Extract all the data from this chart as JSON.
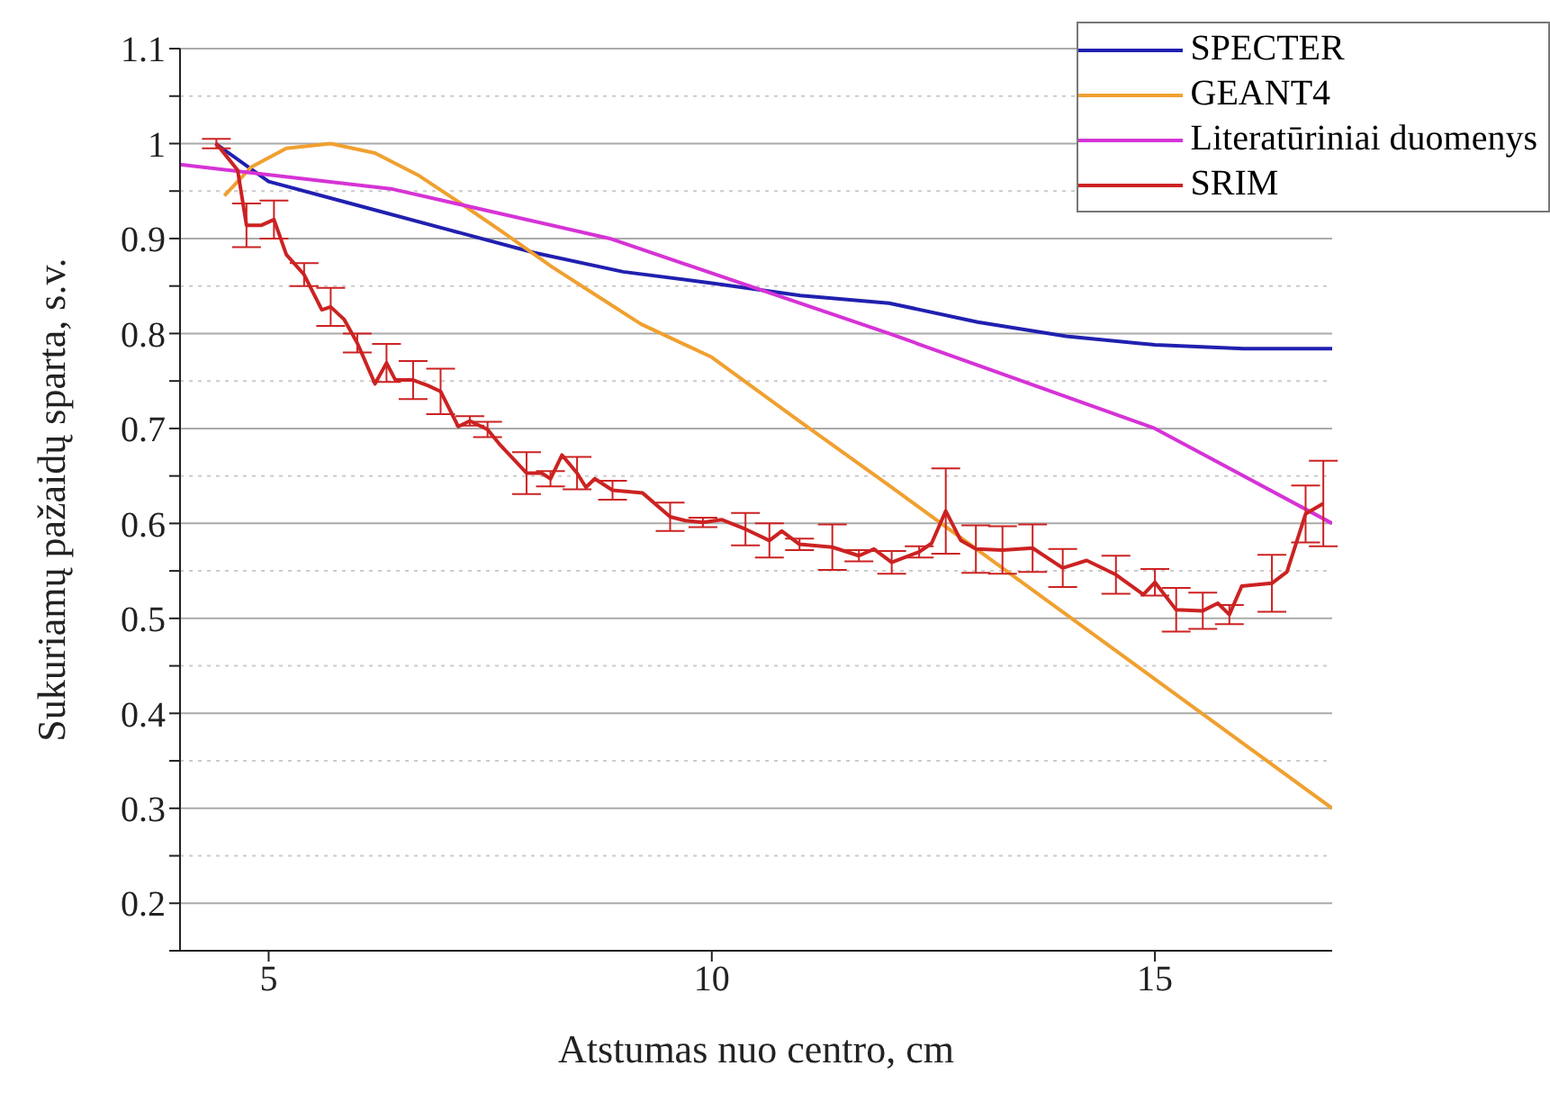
{
  "chart_data": {
    "type": "line",
    "xlabel": "Atstumas nuo centro, cm",
    "ylabel": "Sukuriamų pažaidų sparta, s.v.",
    "xlim": [
      4,
      17
    ],
    "xticks": [
      5,
      10,
      15
    ],
    "ylim": [
      0.15,
      1.1
    ],
    "yticks": [
      {
        "value": 0.15,
        "label": null
      },
      0.2,
      {
        "value": 0.25,
        "label": null
      },
      0.3,
      {
        "value": 0.35,
        "label": null
      },
      0.4,
      {
        "value": 0.45,
        "label": null
      },
      0.5,
      {
        "value": 0.55,
        "label": null
      },
      0.6,
      {
        "value": 0.65,
        "label": null
      },
      0.7,
      {
        "value": 0.75,
        "label": null
      },
      0.8,
      {
        "value": 0.85,
        "label": null
      },
      0.9,
      {
        "value": 0.95,
        "label": null
      },
      1.0,
      {
        "value": 1.05,
        "label": null
      },
      1.1
    ],
    "grid": "y",
    "legend": "top right",
    "series": [
      {
        "name": "SPECTER",
        "color": "#2020b0",
        "x": [
          4.4,
          5,
          6,
          7,
          8,
          9,
          10,
          11,
          12,
          13,
          14,
          15,
          16,
          17
        ],
        "values": [
          1.0,
          0.96,
          0.935,
          0.91,
          0.885,
          0.865,
          0.853,
          0.84,
          0.832,
          0.812,
          0.797,
          0.788,
          0.784,
          0.784
        ]
      },
      {
        "name": "GEANT4",
        "color": "#f0a030",
        "x": [
          4.5,
          4.8,
          5.2,
          5.7,
          6.2,
          6.7,
          7.2,
          7.7,
          8.2,
          8.7,
          9.2,
          10,
          11,
          12,
          13,
          14,
          15,
          16,
          17
        ],
        "values": [
          0.945,
          0.975,
          0.995,
          1.0,
          0.99,
          0.966,
          0.935,
          0.903,
          0.87,
          0.84,
          0.81,
          0.775,
          0.707,
          0.64,
          0.572,
          0.504,
          0.436,
          0.368,
          0.3
        ]
      },
      {
        "name": "Literatūriniai duomenys",
        "color": "#d633d6",
        "x": [
          4,
          6.4,
          8.85,
          12,
          15,
          17
        ],
        "values": [
          0.978,
          0.952,
          0.9,
          0.8,
          0.7,
          0.6
        ]
      },
      {
        "name": "SRIM",
        "color": "#cc2222",
        "x": [
          4.41,
          4.65,
          4.75,
          4.92,
          5.06,
          5.2,
          5.4,
          5.6,
          5.7,
          5.85,
          6.0,
          6.2,
          6.33,
          6.43,
          6.63,
          6.8,
          6.94,
          7.14,
          7.27,
          7.47,
          7.6,
          7.91,
          8.08,
          8.18,
          8.31,
          8.48,
          8.58,
          8.68,
          8.88,
          9.22,
          9.53,
          9.7,
          9.9,
          10.11,
          10.38,
          10.65,
          10.79,
          10.99,
          11.36,
          11.66,
          11.83,
          12.03,
          12.34,
          12.48,
          12.64,
          12.81,
          12.98,
          13.28,
          13.62,
          13.96,
          14.23,
          14.56,
          14.87,
          15.0,
          15.24,
          15.54,
          15.71,
          15.84,
          15.98,
          16.32,
          16.49,
          16.7,
          16.9
        ],
        "values": [
          1.0,
          0.972,
          0.914,
          0.914,
          0.92,
          0.883,
          0.862,
          0.825,
          0.828,
          0.815,
          0.79,
          0.747,
          0.769,
          0.751,
          0.751,
          0.745,
          0.739,
          0.702,
          0.708,
          0.699,
          0.684,
          0.653,
          0.653,
          0.647,
          0.672,
          0.653,
          0.638,
          0.647,
          0.635,
          0.632,
          0.607,
          0.603,
          0.601,
          0.604,
          0.594,
          0.582,
          0.592,
          0.578,
          0.575,
          0.566,
          0.573,
          0.559,
          0.57,
          0.579,
          0.613,
          0.582,
          0.573,
          0.572,
          0.574,
          0.553,
          0.561,
          0.546,
          0.525,
          0.538,
          0.509,
          0.508,
          0.516,
          0.504,
          0.534,
          0.537,
          0.549,
          0.61,
          0.621
        ],
        "errors": [
          0.005,
          null,
          0.023,
          null,
          0.02,
          null,
          0.012,
          null,
          0.02,
          null,
          0.01,
          null,
          0.02,
          null,
          0.02,
          null,
          0.024,
          null,
          0.005,
          0.008,
          null,
          0.022,
          null,
          0.008,
          null,
          0.017,
          null,
          null,
          0.01,
          null,
          0.015,
          null,
          0.005,
          null,
          0.017,
          0.018,
          null,
          0.006,
          0.024,
          0.006,
          null,
          0.012,
          0.006,
          null,
          0.045,
          null,
          0.025,
          0.025,
          0.025,
          0.02,
          null,
          0.02,
          null,
          0.014,
          0.023,
          0.019,
          null,
          0.01,
          null,
          0.03,
          null,
          0.03,
          0.045
        ]
      }
    ]
  }
}
